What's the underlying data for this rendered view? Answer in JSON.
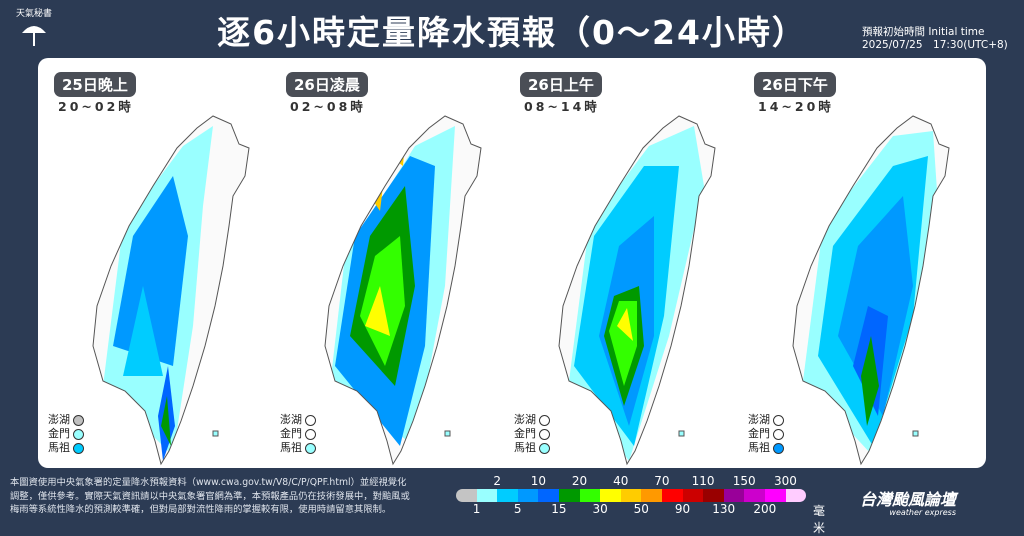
{
  "header": {
    "logo_text": "天氣秘書",
    "title": "逐6小時定量降水預報（0～24小時）",
    "init_label": "預報初始時間 Initial time",
    "init_time": "2025/07/25　17:30(UTC+8)"
  },
  "panels": [
    {
      "date": "25日晚上",
      "hours": "20~02時",
      "islands": [
        {
          "name": "澎湖",
          "color": "#c0c0c0"
        },
        {
          "name": "金門",
          "color": "#99ffff"
        },
        {
          "name": "馬祖",
          "color": "#00ccff"
        }
      ]
    },
    {
      "date": "26日凌晨",
      "hours": "02~08時",
      "islands": [
        {
          "name": "澎湖",
          "color": "#ffffff"
        },
        {
          "name": "金門",
          "color": "#ffffff"
        },
        {
          "name": "馬祖",
          "color": "#99ffff"
        }
      ]
    },
    {
      "date": "26日上午",
      "hours": "08~14時",
      "islands": [
        {
          "name": "澎湖",
          "color": "#ffffff"
        },
        {
          "name": "金門",
          "color": "#ffffff"
        },
        {
          "name": "馬祖",
          "color": "#99ffff"
        }
      ]
    },
    {
      "date": "26日下午",
      "hours": "14~20時",
      "islands": [
        {
          "name": "澎湖",
          "color": "#ffffff"
        },
        {
          "name": "金門",
          "color": "#ffffff"
        },
        {
          "name": "馬祖",
          "color": "#0099ff"
        }
      ]
    }
  ],
  "footer": {
    "lines": [
      "本圖資使用中央氣象署的定量降水預報資料（www.cwa.gov.tw/V8/C/P/QPF.html）並經視覺化",
      "調整，僅供參考。實際天氣資訊請以中央氣象署官網為準，本預報產品仍在技術發展中，對颱風或",
      "梅雨等系統性降水的預測較準確，但對局部對流性降雨的掌握較有限，使用時請留意其限制。"
    ]
  },
  "scale": {
    "colors": [
      "#c4c4c4",
      "#99ffff",
      "#00ccff",
      "#0099ff",
      "#0066ff",
      "#009900",
      "#33ff00",
      "#ffff00",
      "#ffcc00",
      "#ff9900",
      "#ff0000",
      "#cc0000",
      "#990000",
      "#990099",
      "#cc00cc",
      "#ff00ff",
      "#ffccff"
    ],
    "top_labels": [
      "2",
      "10",
      "20",
      "40",
      "70",
      "110",
      "150",
      "300"
    ],
    "bottom_labels": [
      "1",
      "5",
      "15",
      "30",
      "50",
      "90",
      "130",
      "200"
    ],
    "unit": "毫米"
  },
  "brand": {
    "name": "台灣颱風論壇",
    "sub": "weather express"
  }
}
